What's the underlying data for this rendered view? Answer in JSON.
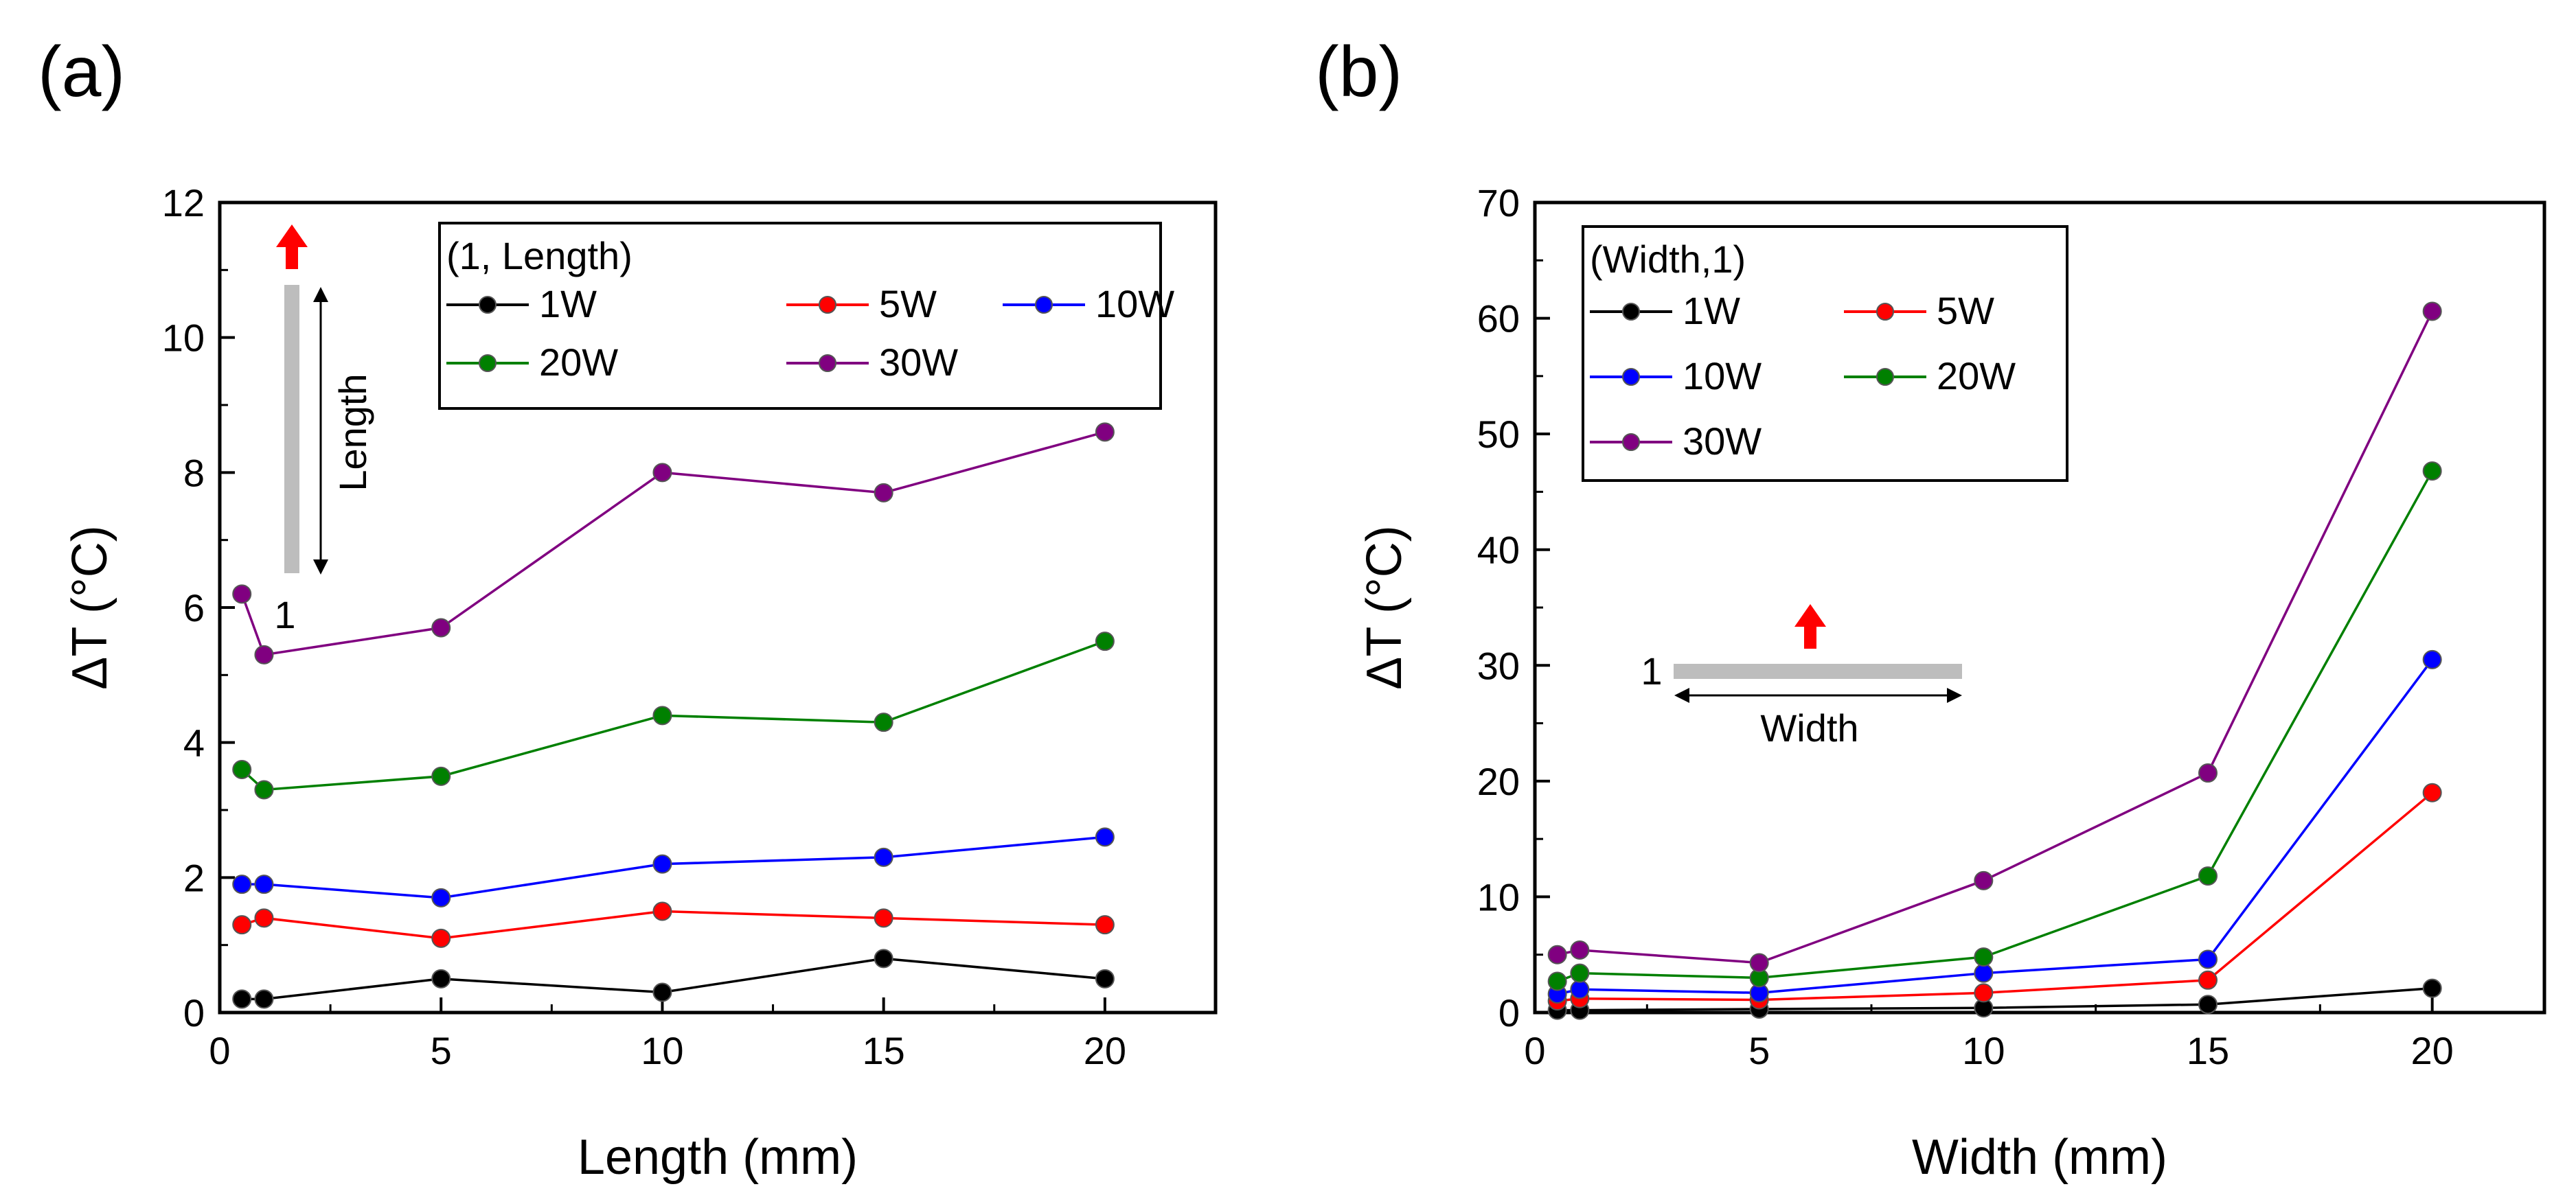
{
  "figure": {
    "panels": [
      "(a)",
      "(b)"
    ]
  },
  "chart_data": [
    {
      "type": "line",
      "panel_label": "(a)",
      "xlabel": "Length (mm)",
      "ylabel": "ΔT (°C)",
      "xlim": [
        0,
        22.5
      ],
      "ylim": [
        0,
        12
      ],
      "xticks": [
        0,
        5,
        10,
        15,
        20
      ],
      "yticks": [
        0,
        2,
        4,
        6,
        8,
        10,
        12
      ],
      "x": [
        0.5,
        1,
        5,
        10,
        15,
        20
      ],
      "legend": {
        "title": "(1, Length)",
        "placement": "top-right"
      },
      "series": [
        {
          "name": "1W",
          "color": "#000000",
          "values": [
            0.2,
            0.2,
            0.5,
            0.3,
            0.8,
            0.5
          ]
        },
        {
          "name": "5W",
          "color": "#ff0000",
          "values": [
            1.3,
            1.4,
            1.1,
            1.5,
            1.4,
            1.3
          ]
        },
        {
          "name": "10W",
          "color": "#0000ff",
          "values": [
            1.9,
            1.9,
            1.7,
            2.2,
            2.3,
            2.6
          ]
        },
        {
          "name": "20W",
          "color": "#008000",
          "values": [
            3.6,
            3.3,
            3.5,
            4.4,
            4.3,
            5.5
          ]
        },
        {
          "name": "30W",
          "color": "#800080",
          "values": [
            6.2,
            5.3,
            5.7,
            8.0,
            7.7,
            8.6
          ]
        }
      ],
      "inset": {
        "dimension_label": "Length",
        "unit_label": "1",
        "bar_color": "#bdbdbd",
        "arrow_color": "#ff0000"
      }
    },
    {
      "type": "line",
      "panel_label": "(b)",
      "xlabel": "Width (mm)",
      "ylabel": "ΔT (°C)",
      "xlim": [
        0,
        22.5
      ],
      "ylim": [
        0,
        70
      ],
      "xticks": [
        0,
        5,
        10,
        15,
        20
      ],
      "yticks": [
        0,
        10,
        20,
        30,
        40,
        50,
        60,
        70
      ],
      "x": [
        0.5,
        1,
        5,
        10,
        15,
        20
      ],
      "legend": {
        "title": "(Width,1)",
        "placement": "top-left"
      },
      "series": [
        {
          "name": "1W",
          "color": "#000000",
          "values": [
            0.2,
            0.2,
            0.3,
            0.4,
            0.7,
            2.1
          ]
        },
        {
          "name": "5W",
          "color": "#ff0000",
          "values": [
            1.0,
            1.2,
            1.1,
            1.7,
            2.8,
            19.0
          ]
        },
        {
          "name": "10W",
          "color": "#0000ff",
          "values": [
            1.6,
            2.0,
            1.7,
            3.4,
            4.6,
            30.5
          ]
        },
        {
          "name": "20W",
          "color": "#008000",
          "values": [
            2.7,
            3.4,
            3.0,
            4.8,
            11.8,
            46.8
          ]
        },
        {
          "name": "30W",
          "color": "#800080",
          "values": [
            5.0,
            5.4,
            4.3,
            11.4,
            20.7,
            60.6
          ]
        }
      ],
      "inset": {
        "dimension_label": "Width",
        "unit_label": "1",
        "bar_color": "#bdbdbd",
        "arrow_color": "#ff0000"
      }
    }
  ]
}
